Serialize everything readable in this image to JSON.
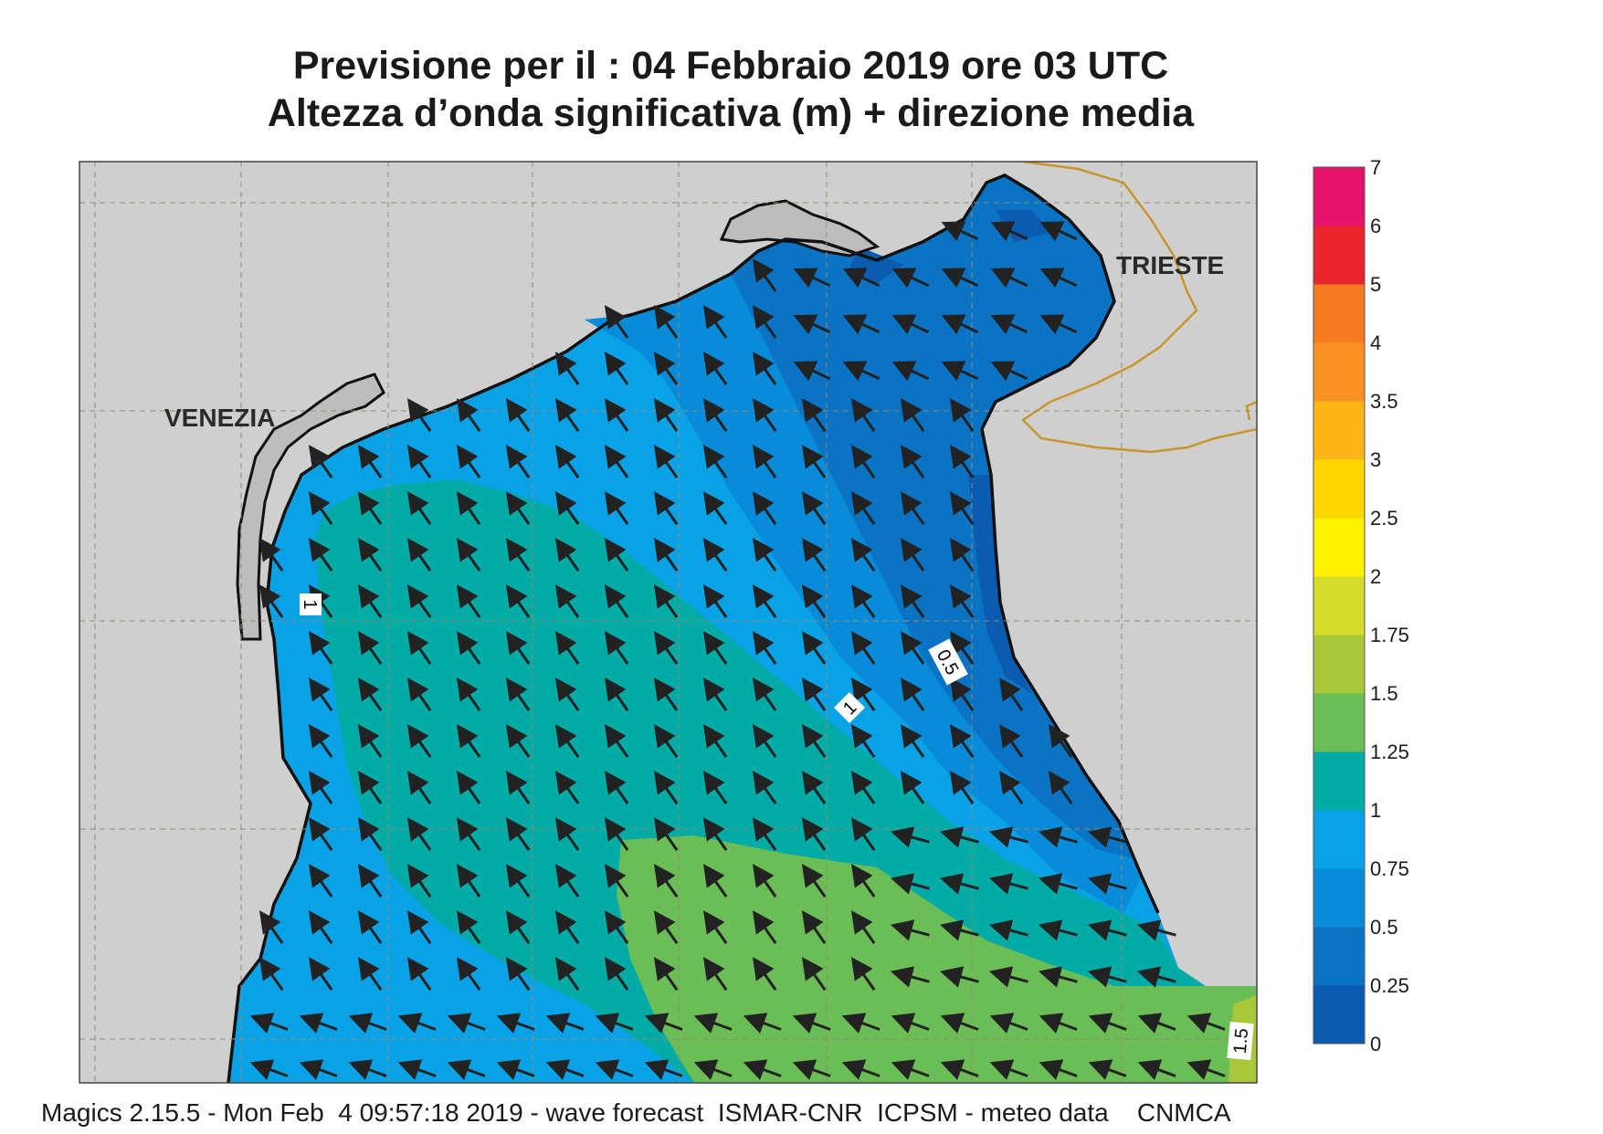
{
  "header": {
    "title_line1": "Previsione per il  :  04  Febbraio 2019   ore 03 UTC",
    "title_line2": "Altezza d’onda significativa (m) + direzione media"
  },
  "map": {
    "cities": [
      {
        "name": "VENEZIA"
      },
      {
        "name": "TRIESTE"
      }
    ],
    "contour_labels": [
      "1",
      "0.5",
      "1",
      "1.5"
    ],
    "wave_direction": "arrows pointing north-west across the basin, turning west near the north-east coast",
    "colors": {
      "land": "#cfcfcf",
      "lagoon": "#bdbdbd",
      "border": "#c8962a",
      "coast": "#111111",
      "arrow": "#222222"
    }
  },
  "colorbar": {
    "levels": [
      "0",
      "0.25",
      "0.5",
      "0.75",
      "1",
      "1.25",
      "1.5",
      "1.75",
      "2",
      "2.5",
      "3",
      "3.5",
      "4",
      "5",
      "6",
      "7"
    ],
    "colors": [
      "#0b5bb0",
      "#0a73c4",
      "#088cd9",
      "#0aa2e6",
      "#03aba7",
      "#6bbd55",
      "#a8c83a",
      "#d5dd2a",
      "#fef200",
      "#fed600",
      "#fbb516",
      "#f99220",
      "#f57a22",
      "#e9242a",
      "#e5136e"
    ]
  },
  "footer": {
    "text": "Magics 2.15.5 - Mon Feb  4 09:57:18 2019 - wave forecast  ISMAR-CNR  ICPSM - meteo data    CNMCA"
  }
}
